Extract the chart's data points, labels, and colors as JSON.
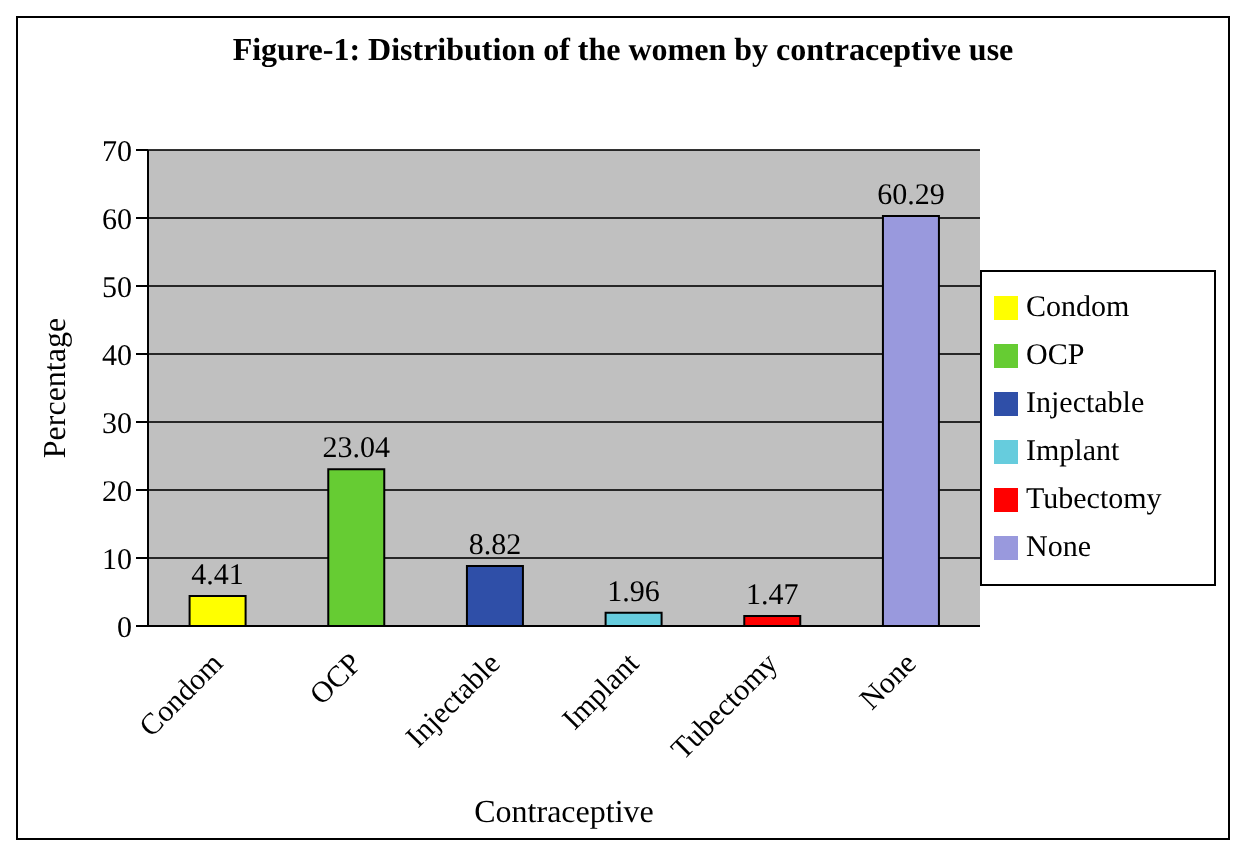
{
  "chart_data": {
    "type": "bar",
    "title": "Figure-1: Distribution of the women by contraceptive use",
    "xlabel": "Contraceptive",
    "ylabel": "Percentage",
    "categories": [
      "Condom",
      "OCP",
      "Injectable",
      "Implant",
      "Tubectomy",
      "None"
    ],
    "series": [
      {
        "name": "Condom",
        "color": "#ffff00",
        "values": [
          4.41,
          null,
          null,
          null,
          null,
          null
        ]
      },
      {
        "name": "OCP",
        "color": "#66cc33",
        "values": [
          null,
          23.04,
          null,
          null,
          null,
          null
        ]
      },
      {
        "name": "Injectable",
        "color": "#2f4fa8",
        "values": [
          null,
          null,
          8.82,
          null,
          null,
          null
        ]
      },
      {
        "name": "Implant",
        "color": "#66ccdd",
        "values": [
          null,
          null,
          null,
          1.96,
          null,
          null
        ]
      },
      {
        "name": "Tubectomy",
        "color": "#ff0000",
        "values": [
          null,
          null,
          null,
          null,
          1.47,
          null
        ]
      },
      {
        "name": "None",
        "color": "#9999dd",
        "values": [
          null,
          null,
          null,
          null,
          null,
          60.29
        ]
      }
    ],
    "stacked": true,
    "ylim": [
      0,
      70
    ],
    "yticks": [
      0,
      10,
      20,
      30,
      40,
      50,
      60,
      70
    ],
    "grid": "y",
    "legend": "right",
    "data_labels": true
  }
}
